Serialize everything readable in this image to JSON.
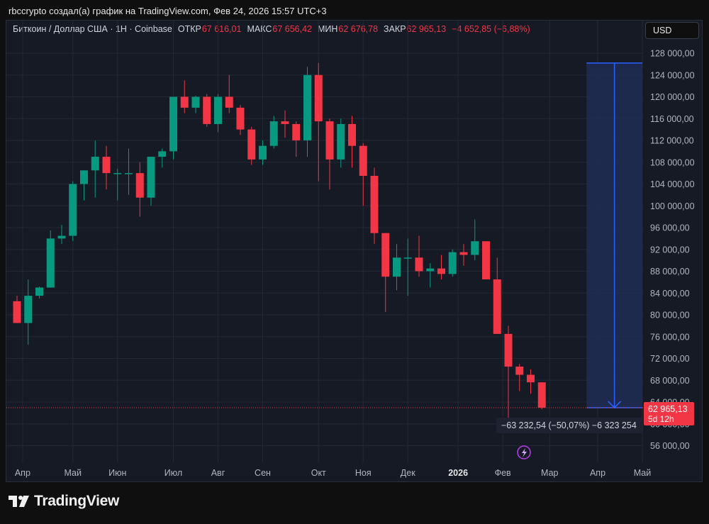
{
  "header": {
    "caption": "rbccrypto создал(а) график на TradingView.com, Фев 24, 2026 15:57 UTC+3"
  },
  "legend": {
    "symbol": "Биткоин / Доллар США · 1Н · Coinbase",
    "open_label": "ОТКР",
    "open_value": "67 616,01",
    "high_label": "МАКС",
    "high_value": "67 656,42",
    "low_label": "МИН",
    "low_value": "62 676,78",
    "close_label": "ЗАКР",
    "close_value": "62 965,13",
    "change": "−4 652,85 (−6,88%)"
  },
  "currency_button": "USD",
  "price_tag": {
    "price": "62 965,13",
    "countdown": "5d 12h"
  },
  "measure_label": "−63 232,54 (−50,07%) −6 323 254",
  "brand": "TradingView",
  "colors": {
    "up": "#089981",
    "down": "#f23645",
    "background": "#161a25",
    "grid": "#232834",
    "measure_line": "#2962ff",
    "measure_fill": "#1f2d55"
  },
  "chart_data": {
    "type": "candlestick",
    "interval": "1W",
    "y_scale": "linear",
    "ylim": [
      52000,
      130500
    ],
    "grid": true,
    "y_ticks": [
      {
        "v": 128000,
        "label": "128 000,00"
      },
      {
        "v": 124000,
        "label": "124 000,00"
      },
      {
        "v": 120000,
        "label": "120 000,00"
      },
      {
        "v": 116000,
        "label": "116 000,00"
      },
      {
        "v": 112000,
        "label": "112 000,00"
      },
      {
        "v": 108000,
        "label": "108 000,00"
      },
      {
        "v": 104000,
        "label": "104 000,00"
      },
      {
        "v": 100000,
        "label": "100 000,00"
      },
      {
        "v": 96000,
        "label": "96 000,00"
      },
      {
        "v": 92000,
        "label": "92 000,00"
      },
      {
        "v": 88000,
        "label": "88 000,00"
      },
      {
        "v": 84000,
        "label": "84 000,00"
      },
      {
        "v": 80000,
        "label": "80 000,00"
      },
      {
        "v": 76000,
        "label": "76 000,00"
      },
      {
        "v": 72000,
        "label": "72 000,00"
      },
      {
        "v": 68000,
        "label": "68 000,00"
      },
      {
        "v": 64000,
        "label": "64 000,00"
      },
      {
        "v": 60000,
        "label": "60 000,00"
      },
      {
        "v": 56000,
        "label": "56 000,00"
      }
    ],
    "x_ticks": [
      {
        "i": 0.5,
        "label": "Апр",
        "bold": false
      },
      {
        "i": 5,
        "label": "Май",
        "bold": false
      },
      {
        "i": 9,
        "label": "Июн",
        "bold": false
      },
      {
        "i": 14,
        "label": "Июл",
        "bold": false
      },
      {
        "i": 18,
        "label": "Авг",
        "bold": false
      },
      {
        "i": 22,
        "label": "Сен",
        "bold": false
      },
      {
        "i": 27,
        "label": "Окт",
        "bold": false
      },
      {
        "i": 31,
        "label": "Ноя",
        "bold": false
      },
      {
        "i": 35,
        "label": "Дек",
        "bold": false
      },
      {
        "i": 39.5,
        "label": "2026",
        "bold": true
      },
      {
        "i": 43.5,
        "label": "Фев",
        "bold": false
      },
      {
        "i": 47.7,
        "label": "Мар",
        "bold": false
      },
      {
        "i": 52,
        "label": "Апр",
        "bold": false
      },
      {
        "i": 56,
        "label": "Май",
        "bold": false
      }
    ],
    "candles": [
      {
        "o": 82500,
        "h": 83500,
        "l": 78500,
        "c": 78500
      },
      {
        "o": 78500,
        "h": 86500,
        "l": 74500,
        "c": 83500
      },
      {
        "o": 83500,
        "h": 85200,
        "l": 83000,
        "c": 85000
      },
      {
        "o": 85000,
        "h": 95500,
        "l": 85000,
        "c": 94000
      },
      {
        "o": 94000,
        "h": 96500,
        "l": 93000,
        "c": 94500
      },
      {
        "o": 94500,
        "h": 104500,
        "l": 93500,
        "c": 104000
      },
      {
        "o": 104000,
        "h": 106500,
        "l": 101000,
        "c": 106500
      },
      {
        "o": 106500,
        "h": 112000,
        "l": 101500,
        "c": 109000
      },
      {
        "o": 109000,
        "h": 111000,
        "l": 103000,
        "c": 106000
      },
      {
        "o": 106000,
        "h": 106800,
        "l": 101000,
        "c": 106000
      },
      {
        "o": 106000,
        "h": 110500,
        "l": 102000,
        "c": 106000
      },
      {
        "o": 106000,
        "h": 108000,
        "l": 98000,
        "c": 101500
      },
      {
        "o": 101500,
        "h": 109000,
        "l": 100000,
        "c": 109000
      },
      {
        "o": 109000,
        "h": 110500,
        "l": 107000,
        "c": 110000
      },
      {
        "o": 110000,
        "h": 119500,
        "l": 108500,
        "c": 120000
      },
      {
        "o": 120000,
        "h": 123000,
        "l": 117000,
        "c": 118000
      },
      {
        "o": 118000,
        "h": 120200,
        "l": 117000,
        "c": 120000
      },
      {
        "o": 120000,
        "h": 120500,
        "l": 114500,
        "c": 115000
      },
      {
        "o": 115000,
        "h": 120500,
        "l": 113500,
        "c": 120000
      },
      {
        "o": 120000,
        "h": 124000,
        "l": 117000,
        "c": 118000
      },
      {
        "o": 118000,
        "h": 118500,
        "l": 113000,
        "c": 114000
      },
      {
        "o": 114000,
        "h": 114500,
        "l": 107500,
        "c": 108500
      },
      {
        "o": 108500,
        "h": 112000,
        "l": 107500,
        "c": 111000
      },
      {
        "o": 111000,
        "h": 116500,
        "l": 110500,
        "c": 115500
      },
      {
        "o": 115500,
        "h": 117500,
        "l": 112500,
        "c": 115000
      },
      {
        "o": 115000,
        "h": 115500,
        "l": 109000,
        "c": 112000
      },
      {
        "o": 112000,
        "h": 125500,
        "l": 109000,
        "c": 124000
      },
      {
        "o": 124000,
        "h": 126200,
        "l": 104500,
        "c": 115500
      },
      {
        "o": 115500,
        "h": 116000,
        "l": 103000,
        "c": 108500
      },
      {
        "o": 108500,
        "h": 116000,
        "l": 107000,
        "c": 115000
      },
      {
        "o": 115000,
        "h": 116500,
        "l": 107000,
        "c": 111000
      },
      {
        "o": 111000,
        "h": 111500,
        "l": 100000,
        "c": 105500
      },
      {
        "o": 105500,
        "h": 107000,
        "l": 93000,
        "c": 95000
      },
      {
        "o": 95000,
        "h": 95000,
        "l": 80500,
        "c": 87000
      },
      {
        "o": 87000,
        "h": 93000,
        "l": 84500,
        "c": 90500
      },
      {
        "o": 90500,
        "h": 94000,
        "l": 83500,
        "c": 90500
      },
      {
        "o": 90500,
        "h": 94500,
        "l": 87000,
        "c": 88000
      },
      {
        "o": 88000,
        "h": 89500,
        "l": 85000,
        "c": 88500
      },
      {
        "o": 88500,
        "h": 91000,
        "l": 86500,
        "c": 87500
      },
      {
        "o": 87500,
        "h": 92000,
        "l": 87000,
        "c": 91500
      },
      {
        "o": 91500,
        "h": 93000,
        "l": 89000,
        "c": 91000
      },
      {
        "o": 91000,
        "h": 97500,
        "l": 90000,
        "c": 93500
      },
      {
        "o": 93500,
        "h": 93500,
        "l": 86500,
        "c": 86500
      },
      {
        "o": 86500,
        "h": 90500,
        "l": 76500,
        "c": 76500
      },
      {
        "o": 76500,
        "h": 78000,
        "l": 60000,
        "c": 70500
      },
      {
        "o": 70500,
        "h": 71000,
        "l": 66000,
        "c": 69000
      },
      {
        "o": 69000,
        "h": 70000,
        "l": 65500,
        "c": 67616.01
      },
      {
        "o": 67616.01,
        "h": 67656.42,
        "l": 62676.78,
        "c": 62965.13
      }
    ],
    "last_price": 62965.13,
    "measure": {
      "from_price": 126200,
      "to_price": 62965.13,
      "start_index": 51,
      "end_index": 56
    }
  }
}
